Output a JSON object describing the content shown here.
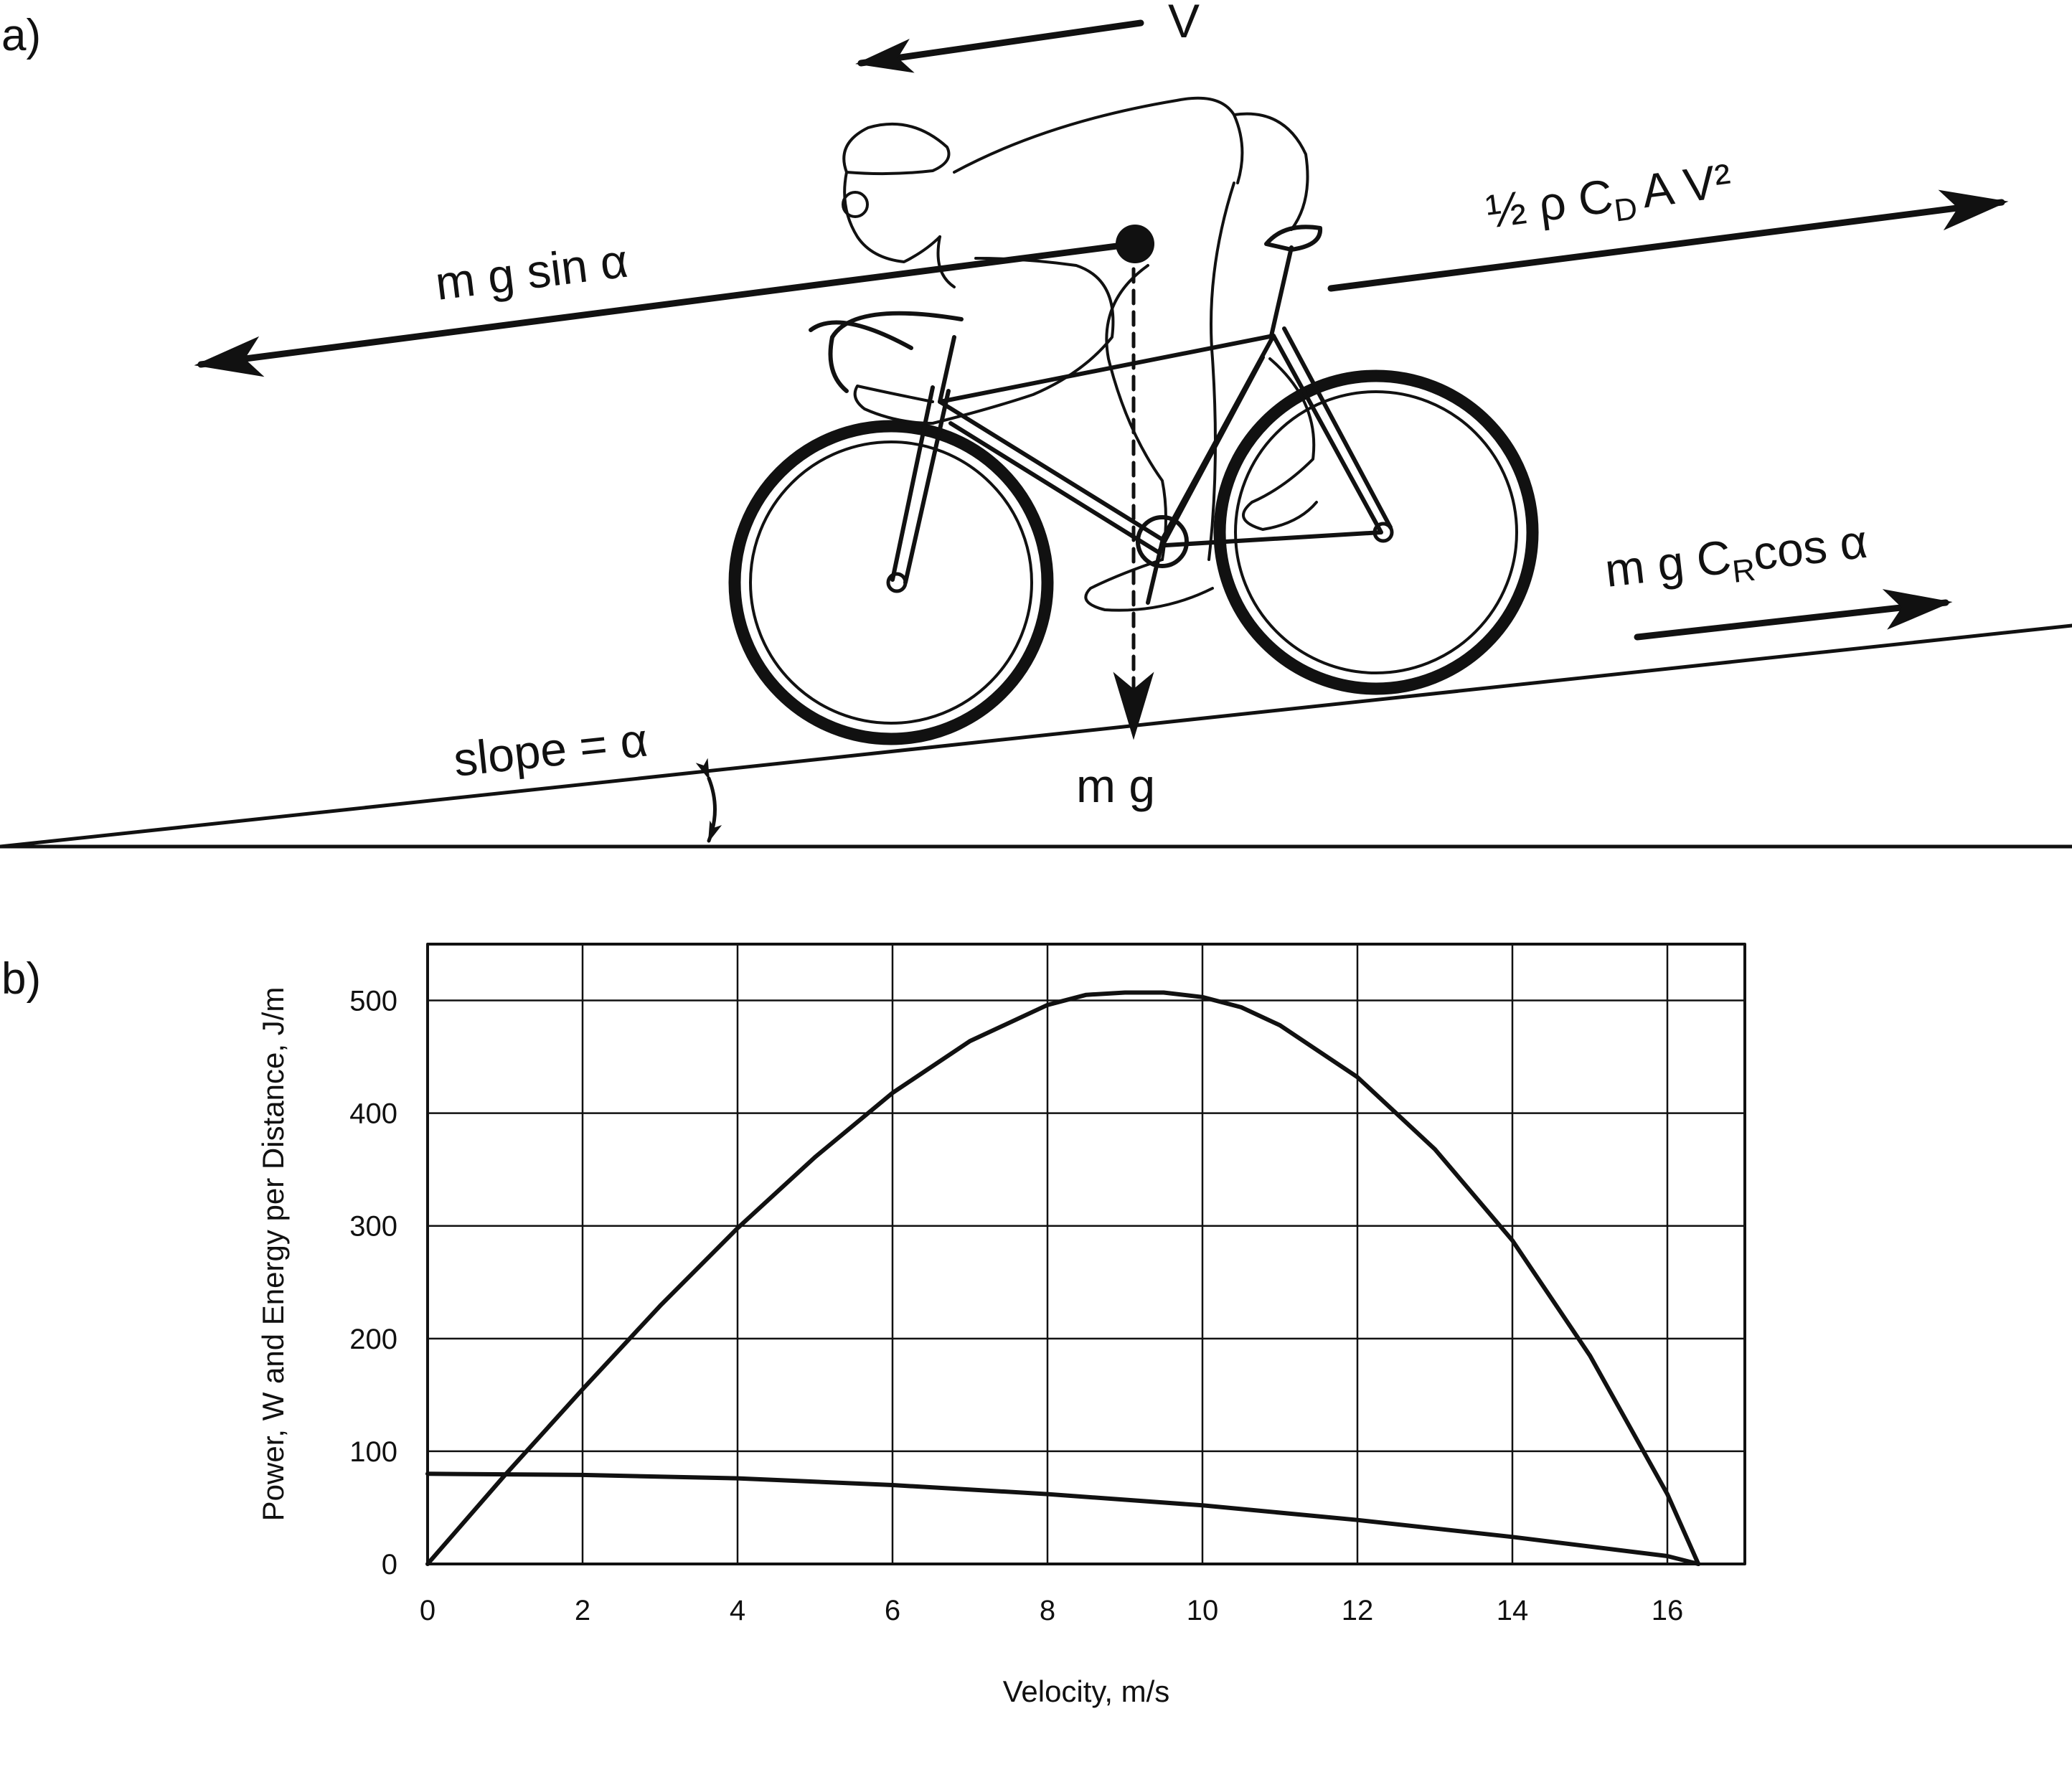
{
  "panel_a": {
    "label": "a)",
    "velocity": "V",
    "gravity_parallel": "m g sin α",
    "drag_prefix": "½ ρ C",
    "drag_sub": "D",
    "drag_suffix": "A V²",
    "rolling_prefix": "m g C",
    "rolling_sub": "R",
    "rolling_suffix": "cos α",
    "weight": "m g",
    "slope": "slope = α"
  },
  "panel_b": {
    "label": "b)"
  },
  "chart_data": {
    "type": "line",
    "title": "",
    "xlabel": "Velocity, m/s",
    "ylabel": "Power, W and Energy per Distance, J/m",
    "xlim": [
      0,
      17
    ],
    "ylim": [
      0,
      550
    ],
    "xticks": [
      0,
      2,
      4,
      6,
      8,
      10,
      12,
      14,
      16
    ],
    "yticks": [
      0,
      100,
      200,
      300,
      400,
      500
    ],
    "grid": true,
    "legend": "none",
    "series": [
      {
        "x": [
          0,
          1,
          2,
          3,
          4,
          5,
          6,
          7,
          8,
          8.5,
          9,
          9.5,
          10,
          10.5,
          11,
          12,
          13,
          14,
          15,
          16,
          16.4
        ],
        "y": [
          0,
          79,
          155,
          229,
          298,
          361,
          418,
          464,
          496,
          505,
          507,
          507,
          503,
          494,
          478,
          432,
          368,
          287,
          185,
          62,
          0
        ]
      },
      {
        "x": [
          0,
          2,
          4,
          6,
          8,
          10,
          12,
          14,
          16,
          16.4
        ],
        "y": [
          80,
          79,
          76,
          70,
          62,
          52,
          39,
          24,
          7,
          0
        ]
      }
    ]
  }
}
